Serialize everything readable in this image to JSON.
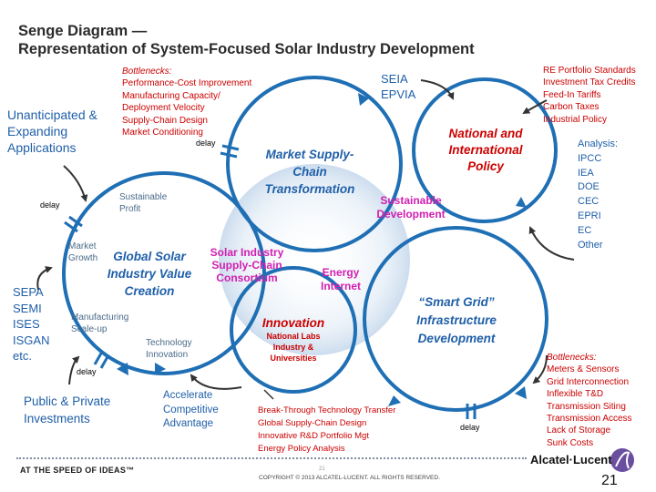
{
  "title": {
    "line1": "Senge Diagram —",
    "line2": "Representation of System-Focused Solar Industry Development"
  },
  "circles": {
    "market": "Market Supply-Chain Transformation",
    "global": "Global Solar Industry Value Creation",
    "national": "National and International Policy",
    "smartgrid": "“Smart Grid” Infrastructure Development",
    "innovation": "Innovation",
    "innovation_sub": [
      "National Labs",
      "Industry &",
      "Universities"
    ]
  },
  "overlaps": {
    "sustainable_development": "Sustainable Development",
    "consortium": [
      "Solar Industry",
      "Supply-Chain",
      "Consortium"
    ],
    "energy_internet": [
      "Energy",
      "Internet"
    ]
  },
  "small_labels": {
    "sustainable_profit": [
      "Sustainable",
      "Profit"
    ],
    "market_growth": [
      "Market",
      "Growth"
    ],
    "manufacturing_scaleup": [
      "Manufacturing",
      "Scale-up"
    ],
    "technology_innovation": [
      "Technology",
      "Innovation"
    ]
  },
  "delay_label": "delay",
  "bottlenecks_top": {
    "heading": "Bottlenecks:",
    "items": [
      "Performance-Cost Improvement",
      "Manufacturing Capacity/",
      "Deployment Velocity",
      "Supply-Chain Design",
      "Market Conditioning"
    ]
  },
  "policy_list": [
    "RE Portfolio  Standards",
    "Investment Tax Credits",
    "Feed-In Tariffs",
    "Carbon Taxes",
    "Industrial Policy"
  ],
  "seia": [
    "SEIA",
    "EPVIA"
  ],
  "analysis": [
    "Analysis:",
    "IPCC",
    "IEA",
    "DOE",
    "CEC",
    "EPRI",
    "EC",
    "Other"
  ],
  "unanticipated": [
    "Unanticipated &",
    "Expanding",
    "Applications"
  ],
  "sepa": [
    "SEPA",
    "SEMI",
    "ISES",
    "ISGAN",
    "etc."
  ],
  "public_private": [
    "Public & Private",
    "Investments"
  ],
  "accelerate": [
    "Accelerate",
    "Competitive",
    "Advantage"
  ],
  "breakthrough": [
    "Break-Through Technology Transfer",
    "Global Supply-Chain Design",
    "Innovative R&D Portfolio Mgt",
    "Energy Policy Analysis"
  ],
  "bottlenecks_bottom": {
    "heading": "Bottlenecks:",
    "items": [
      "Meters & Sensors",
      "Grid Interconnection",
      "Inflexible T&D",
      "Transmission Siting",
      "Transmission Access",
      "Lack of Storage",
      "Sunk Costs"
    ]
  },
  "footer": {
    "tagline": "AT THE SPEED OF IDEAS™",
    "copyright": "COPYRIGHT © 2013 ALCATEL-LUCENT.  ALL RIGHTS RESERVED.",
    "page_small": "21",
    "page": "21",
    "brand": "Alcatel·Lucent"
  },
  "colors": {
    "circle": "#1f6fb5",
    "red": "#cc0000",
    "magenta": "#d11fb0",
    "text_blue": "#1f5fa8"
  }
}
